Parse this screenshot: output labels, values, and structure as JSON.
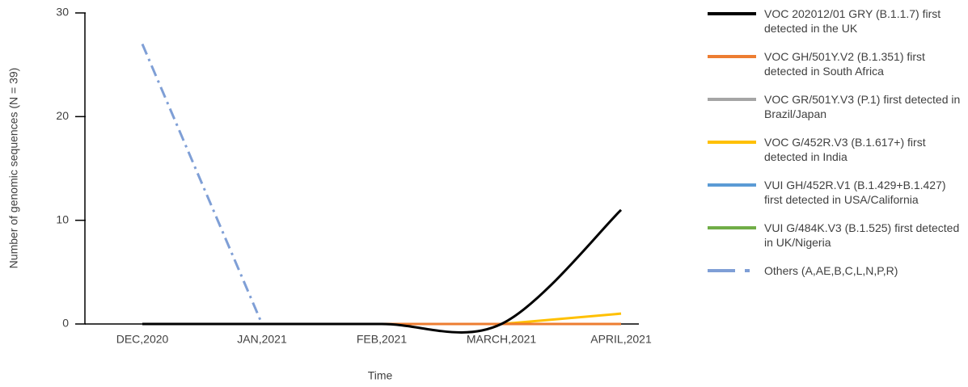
{
  "chart_data": {
    "type": "line",
    "x_label": "Time",
    "y_label": "Number of genomic sequences (N = 39)",
    "categories": [
      "DEC,2020",
      "JAN,2021",
      "FEB,2021",
      "MARCH,2021",
      "APRIL,2021"
    ],
    "ylim": [
      0,
      30
    ],
    "yticks": [
      0,
      10,
      20,
      30
    ],
    "series": [
      {
        "name": "VOC 202012/01 GRY (B.1.1.7) first detected in the UK",
        "color": "#000000",
        "values": [
          0,
          0,
          0,
          0,
          11
        ],
        "smooth": true
      },
      {
        "name": "VOC GH/501Y.V2 (B.1.351) first detected in South Africa",
        "color": "#ed7d31",
        "values": [
          0,
          0,
          0,
          0,
          0
        ]
      },
      {
        "name": "VOC GR/501Y.V3 (P.1) first detected in Brazil/Japan",
        "color": "#a5a5a5",
        "values": [
          0,
          0,
          0,
          0,
          0
        ]
      },
      {
        "name": "VOC G/452R.V3 (B.1.617+) first detected in India",
        "color": "#ffc000",
        "values": [
          0,
          0,
          0,
          0,
          1
        ]
      },
      {
        "name": "VUI GH/452R.V1 (B.1.429+B.1.427) first detected in USA/California",
        "color": "#5b9bd5",
        "values": [
          0,
          0,
          0,
          0,
          0
        ]
      },
      {
        "name": "VUI G/484K.V3 (B.1.525) first detected in UK/Nigeria",
        "color": "#70ad47",
        "values": [
          0,
          0,
          0,
          0,
          0
        ]
      },
      {
        "name": "Others (A,AE,B,C,L,N,P,R)",
        "color": "#7f9fd6",
        "values": [
          27,
          0,
          0,
          0,
          0
        ],
        "dash": "dash-dot"
      }
    ]
  }
}
